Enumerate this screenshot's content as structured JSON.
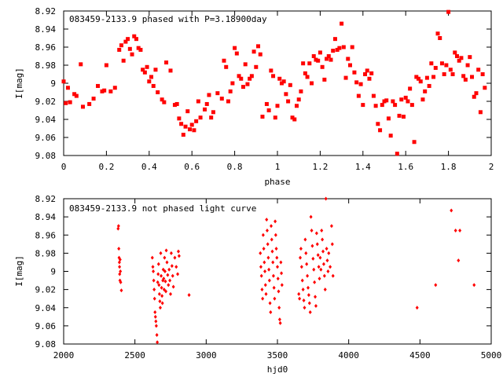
{
  "chart_data": [
    {
      "type": "scatter",
      "title": "083459-2133.9 phased with P=3.18900day",
      "xlabel": "phase",
      "ylabel": "I[mag]",
      "xlim": [
        0,
        2
      ],
      "ylim": [
        8.92,
        9.08
      ],
      "y_inverted": true,
      "xticks": [
        "0",
        "0.2",
        "0.4",
        "0.6",
        "0.8",
        "1",
        "1.2",
        "1.4",
        "1.6",
        "1.8",
        "2"
      ],
      "yticks": [
        "8.92",
        "8.94",
        "8.96",
        "8.98",
        "9",
        "9.02",
        "9.04",
        "9.06",
        "9.08"
      ],
      "marker": "filled-square",
      "color": "#ff0000",
      "points": [
        [
          0.0,
          8.998
        ],
        [
          0.01,
          9.022
        ],
        [
          0.02,
          9.005
        ],
        [
          0.03,
          9.021
        ],
        [
          0.05,
          9.012
        ],
        [
          0.06,
          9.014
        ],
        [
          0.08,
          8.979
        ],
        [
          0.09,
          9.026
        ],
        [
          0.12,
          9.023
        ],
        [
          0.14,
          9.017
        ],
        [
          0.16,
          9.003
        ],
        [
          0.18,
          9.009
        ],
        [
          0.19,
          9.008
        ],
        [
          0.2,
          8.98
        ],
        [
          0.22,
          9.009
        ],
        [
          0.24,
          9.005
        ],
        [
          0.26,
          8.963
        ],
        [
          0.27,
          8.958
        ],
        [
          0.28,
          8.975
        ],
        [
          0.29,
          8.954
        ],
        [
          0.3,
          8.951
        ],
        [
          0.31,
          8.962
        ],
        [
          0.32,
          8.968
        ],
        [
          0.33,
          8.948
        ],
        [
          0.34,
          8.951
        ],
        [
          0.35,
          8.961
        ],
        [
          0.36,
          8.963
        ],
        [
          0.37,
          8.985
        ],
        [
          0.38,
          8.988
        ],
        [
          0.39,
          8.982
        ],
        [
          0.4,
          8.998
        ],
        [
          0.41,
          8.993
        ],
        [
          0.42,
          9.003
        ],
        [
          0.43,
          8.985
        ],
        [
          0.44,
          9.01
        ],
        [
          0.46,
          9.018
        ],
        [
          0.47,
          9.021
        ],
        [
          0.48,
          8.977
        ],
        [
          0.5,
          8.986
        ],
        [
          0.52,
          9.024
        ],
        [
          0.53,
          9.023
        ],
        [
          0.54,
          9.039
        ],
        [
          0.55,
          9.045
        ],
        [
          0.56,
          9.057
        ],
        [
          0.57,
          9.048
        ],
        [
          0.58,
          9.031
        ],
        [
          0.59,
          9.051
        ],
        [
          0.6,
          9.046
        ],
        [
          0.61,
          9.052
        ],
        [
          0.62,
          9.042
        ],
        [
          0.63,
          9.02
        ],
        [
          0.64,
          9.038
        ],
        [
          0.66,
          9.029
        ],
        [
          0.67,
          9.023
        ],
        [
          0.68,
          9.013
        ],
        [
          0.69,
          9.038
        ],
        [
          0.7,
          9.032
        ],
        [
          0.72,
          9.011
        ],
        [
          0.74,
          9.017
        ],
        [
          0.75,
          8.975
        ],
        [
          0.76,
          8.982
        ],
        [
          0.77,
          9.02
        ],
        [
          0.78,
          9.009
        ],
        [
          0.79,
          9.0
        ],
        [
          0.8,
          8.961
        ],
        [
          0.81,
          8.967
        ],
        [
          0.82,
          8.992
        ],
        [
          0.83,
          8.995
        ],
        [
          0.84,
          9.004
        ],
        [
          0.85,
          8.979
        ],
        [
          0.86,
          9.001
        ],
        [
          0.87,
          8.995
        ],
        [
          0.88,
          8.992
        ],
        [
          0.89,
          8.965
        ],
        [
          0.9,
          8.982
        ],
        [
          0.91,
          8.959
        ],
        [
          0.92,
          8.968
        ],
        [
          0.93,
          9.037
        ],
        [
          0.95,
          9.023
        ],
        [
          0.96,
          9.03
        ],
        [
          0.97,
          8.986
        ],
        [
          0.98,
          8.992
        ],
        [
          0.99,
          9.038
        ],
        [
          1.0,
          9.025
        ],
        [
          1.01,
          8.995
        ],
        [
          1.02,
          9.0
        ],
        [
          1.03,
          8.998
        ],
        [
          1.04,
          9.012
        ],
        [
          1.05,
          9.02
        ],
        [
          1.06,
          9.002
        ],
        [
          1.07,
          9.038
        ],
        [
          1.08,
          9.04
        ],
        [
          1.09,
          9.025
        ],
        [
          1.1,
          9.018
        ],
        [
          1.11,
          9.009
        ],
        [
          1.12,
          8.978
        ],
        [
          1.13,
          8.989
        ],
        [
          1.14,
          8.993
        ],
        [
          1.15,
          8.978
        ],
        [
          1.16,
          9.0
        ],
        [
          1.17,
          8.97
        ],
        [
          1.18,
          8.974
        ],
        [
          1.19,
          8.975
        ],
        [
          1.2,
          8.966
        ],
        [
          1.21,
          8.982
        ],
        [
          1.22,
          8.996
        ],
        [
          1.23,
          8.973
        ],
        [
          1.24,
          8.97
        ],
        [
          1.25,
          8.974
        ],
        [
          1.26,
          8.964
        ],
        [
          1.27,
          8.951
        ],
        [
          1.28,
          8.963
        ],
        [
          1.29,
          8.961
        ],
        [
          1.3,
          8.934
        ],
        [
          1.31,
          8.96
        ],
        [
          1.32,
          8.994
        ],
        [
          1.33,
          8.973
        ],
        [
          1.34,
          8.98
        ],
        [
          1.35,
          8.96
        ],
        [
          1.36,
          8.988
        ],
        [
          1.37,
          8.999
        ],
        [
          1.38,
          9.014
        ],
        [
          1.39,
          9.001
        ],
        [
          1.4,
          9.024
        ],
        [
          1.41,
          8.99
        ],
        [
          1.42,
          8.986
        ],
        [
          1.43,
          8.995
        ],
        [
          1.44,
          8.989
        ],
        [
          1.45,
          9.014
        ],
        [
          1.46,
          9.025
        ],
        [
          1.47,
          9.045
        ],
        [
          1.48,
          9.052
        ],
        [
          1.49,
          9.024
        ],
        [
          1.5,
          9.02
        ],
        [
          1.51,
          9.019
        ],
        [
          1.52,
          9.039
        ],
        [
          1.53,
          9.058
        ],
        [
          1.54,
          9.02
        ],
        [
          1.55,
          9.024
        ],
        [
          1.56,
          9.078
        ],
        [
          1.57,
          9.036
        ],
        [
          1.58,
          9.018
        ],
        [
          1.59,
          9.037
        ],
        [
          1.6,
          9.016
        ],
        [
          1.61,
          9.02
        ],
        [
          1.62,
          9.006
        ],
        [
          1.63,
          9.024
        ],
        [
          1.64,
          9.065
        ],
        [
          1.65,
          8.993
        ],
        [
          1.66,
          8.995
        ],
        [
          1.67,
          8.998
        ],
        [
          1.68,
          9.018
        ],
        [
          1.69,
          9.009
        ],
        [
          1.7,
          8.994
        ],
        [
          1.71,
          9.003
        ],
        [
          1.72,
          8.978
        ],
        [
          1.73,
          8.993
        ],
        [
          1.74,
          8.983
        ],
        [
          1.75,
          8.945
        ],
        [
          1.76,
          8.95
        ],
        [
          1.77,
          8.978
        ],
        [
          1.78,
          8.99
        ],
        [
          1.79,
          8.98
        ],
        [
          1.8,
          8.921
        ],
        [
          1.81,
          8.985
        ],
        [
          1.82,
          8.99
        ],
        [
          1.83,
          8.966
        ],
        [
          1.84,
          8.97
        ],
        [
          1.85,
          8.975
        ],
        [
          1.86,
          8.972
        ],
        [
          1.87,
          8.992
        ],
        [
          1.88,
          8.996
        ],
        [
          1.89,
          8.98
        ],
        [
          1.9,
          8.971
        ],
        [
          1.91,
          8.993
        ],
        [
          1.92,
          9.015
        ],
        [
          1.93,
          9.011
        ],
        [
          1.94,
          8.985
        ],
        [
          1.95,
          9.032
        ],
        [
          1.96,
          8.99
        ],
        [
          1.97,
          9.005
        ]
      ]
    },
    {
      "type": "scatter",
      "title": "083459-2133.9 not phased light curve",
      "xlabel": "hjd0",
      "ylabel": "I[mag]",
      "xlim": [
        2000,
        5000
      ],
      "ylim": [
        8.92,
        9.08
      ],
      "y_inverted": true,
      "xticks": [
        "2000",
        "2500",
        "3000",
        "3500",
        "4000",
        "4500",
        "5000"
      ],
      "yticks": [
        "8.92",
        "8.94",
        "8.96",
        "8.98",
        "9",
        "9.02",
        "9.04",
        "9.06",
        "9.08"
      ],
      "marker": "small-diamond",
      "color": "#ff0000",
      "points": [
        [
          2382,
          8.953
        ],
        [
          2385,
          8.95
        ],
        [
          2387,
          8.975
        ],
        [
          2389,
          8.985
        ],
        [
          2391,
          8.99
        ],
        [
          2392,
          8.995
        ],
        [
          2393,
          9.003
        ],
        [
          2395,
          9.01
        ],
        [
          2396,
          8.987
        ],
        [
          2398,
          9.0
        ],
        [
          2400,
          9.012
        ],
        [
          2405,
          9.021
        ],
        [
          2622,
          8.985
        ],
        [
          2626,
          8.995
        ],
        [
          2629,
          9.0
        ],
        [
          2632,
          9.01
        ],
        [
          2635,
          9.02
        ],
        [
          2638,
          9.03
        ],
        [
          2641,
          9.045
        ],
        [
          2644,
          9.05
        ],
        [
          2647,
          9.055
        ],
        [
          2650,
          9.06
        ],
        [
          2654,
          9.07
        ],
        [
          2657,
          9.078
        ],
        [
          2660,
          9.012
        ],
        [
          2663,
          9.003
        ],
        [
          2666,
          8.992
        ],
        [
          2669,
          9.015
        ],
        [
          2672,
          9.025
        ],
        [
          2675,
          9.033
        ],
        [
          2678,
          9.04
        ],
        [
          2681,
          8.98
        ],
        [
          2684,
          9.005
        ],
        [
          2687,
          9.018
        ],
        [
          2690,
          9.027
        ],
        [
          2693,
          9.035
        ],
        [
          2696,
          9.01
        ],
        [
          2699,
          8.998
        ],
        [
          2702,
          9.008
        ],
        [
          2705,
          9.02
        ],
        [
          2708,
          8.985
        ],
        [
          2711,
          9.0
        ],
        [
          2714,
          9.011
        ],
        [
          2717,
          9.022
        ],
        [
          2720,
          8.977
        ],
        [
          2725,
          8.99
        ],
        [
          2730,
          9.004
        ],
        [
          2735,
          9.015
        ],
        [
          2740,
          8.998
        ],
        [
          2745,
          9.01
        ],
        [
          2750,
          9.025
        ],
        [
          2755,
          8.98
        ],
        [
          2760,
          8.994
        ],
        [
          2765,
          9.005
        ],
        [
          2770,
          9.017
        ],
        [
          2780,
          8.985
        ],
        [
          2790,
          8.995
        ],
        [
          2800,
          9.003
        ],
        [
          2805,
          8.978
        ],
        [
          2810,
          8.983
        ],
        [
          2880,
          9.026
        ],
        [
          3380,
          8.98
        ],
        [
          3384,
          8.995
        ],
        [
          3388,
          9.005
        ],
        [
          3392,
          9.02
        ],
        [
          3396,
          9.03
        ],
        [
          3400,
          8.96
        ],
        [
          3404,
          8.975
        ],
        [
          3408,
          8.99
        ],
        [
          3412,
          9.0
        ],
        [
          3416,
          9.015
        ],
        [
          3420,
          9.025
        ],
        [
          3424,
          8.943
        ],
        [
          3428,
          8.955
        ],
        [
          3432,
          8.97
        ],
        [
          3436,
          8.985
        ],
        [
          3440,
          8.998
        ],
        [
          3444,
          9.01
        ],
        [
          3448,
          9.035
        ],
        [
          3452,
          9.045
        ],
        [
          3456,
          8.95
        ],
        [
          3460,
          8.965
        ],
        [
          3464,
          8.978
        ],
        [
          3468,
          8.99
        ],
        [
          3472,
          9.005
        ],
        [
          3476,
          9.018
        ],
        [
          3480,
          9.03
        ],
        [
          3484,
          8.945
        ],
        [
          3488,
          8.96
        ],
        [
          3492,
          8.975
        ],
        [
          3496,
          8.985
        ],
        [
          3500,
          8.995
        ],
        [
          3504,
          9.008
        ],
        [
          3508,
          9.022
        ],
        [
          3512,
          9.04
        ],
        [
          3516,
          9.053
        ],
        [
          3520,
          9.057
        ],
        [
          3524,
          8.99
        ],
        [
          3528,
          9.002
        ],
        [
          3532,
          9.015
        ],
        [
          3650,
          9.025
        ],
        [
          3655,
          9.03
        ],
        [
          3660,
          8.985
        ],
        [
          3665,
          8.975
        ],
        [
          3670,
          8.995
        ],
        [
          3675,
          9.01
        ],
        [
          3680,
          9.02
        ],
        [
          3685,
          9.032
        ],
        [
          3690,
          9.04
        ],
        [
          3695,
          8.965
        ],
        [
          3700,
          8.98
        ],
        [
          3705,
          8.992
        ],
        [
          3710,
          9.005
        ],
        [
          3715,
          9.018
        ],
        [
          3720,
          9.026
        ],
        [
          3725,
          9.035
        ],
        [
          3730,
          9.045
        ],
        [
          3735,
          8.94
        ],
        [
          3740,
          8.955
        ],
        [
          3745,
          8.972
        ],
        [
          3750,
          8.986
        ],
        [
          3755,
          8.998
        ],
        [
          3760,
          9.012
        ],
        [
          3765,
          9.028
        ],
        [
          3770,
          9.038
        ],
        [
          3775,
          8.958
        ],
        [
          3780,
          8.97
        ],
        [
          3785,
          8.982
        ],
        [
          3790,
          8.995
        ],
        [
          3795,
          9.008
        ],
        [
          3800,
          8.985
        ],
        [
          3805,
          8.998
        ],
        [
          3810,
          8.955
        ],
        [
          3815,
          8.965
        ],
        [
          3820,
          8.978
        ],
        [
          3825,
          8.992
        ],
        [
          3830,
          9.005
        ],
        [
          3835,
          9.02
        ],
        [
          3840,
          8.92
        ],
        [
          3845,
          8.975
        ],
        [
          3850,
          8.988
        ],
        [
          3855,
          9.0
        ],
        [
          3860,
          8.98
        ],
        [
          3870,
          8.995
        ],
        [
          3880,
          8.95
        ],
        [
          3885,
          8.97
        ],
        [
          3890,
          9.005
        ],
        [
          4480,
          9.04
        ],
        [
          4610,
          9.015
        ],
        [
          4720,
          8.933
        ],
        [
          4750,
          8.955
        ],
        [
          4770,
          8.988
        ],
        [
          4780,
          8.955
        ],
        [
          4880,
          9.015
        ]
      ]
    }
  ]
}
